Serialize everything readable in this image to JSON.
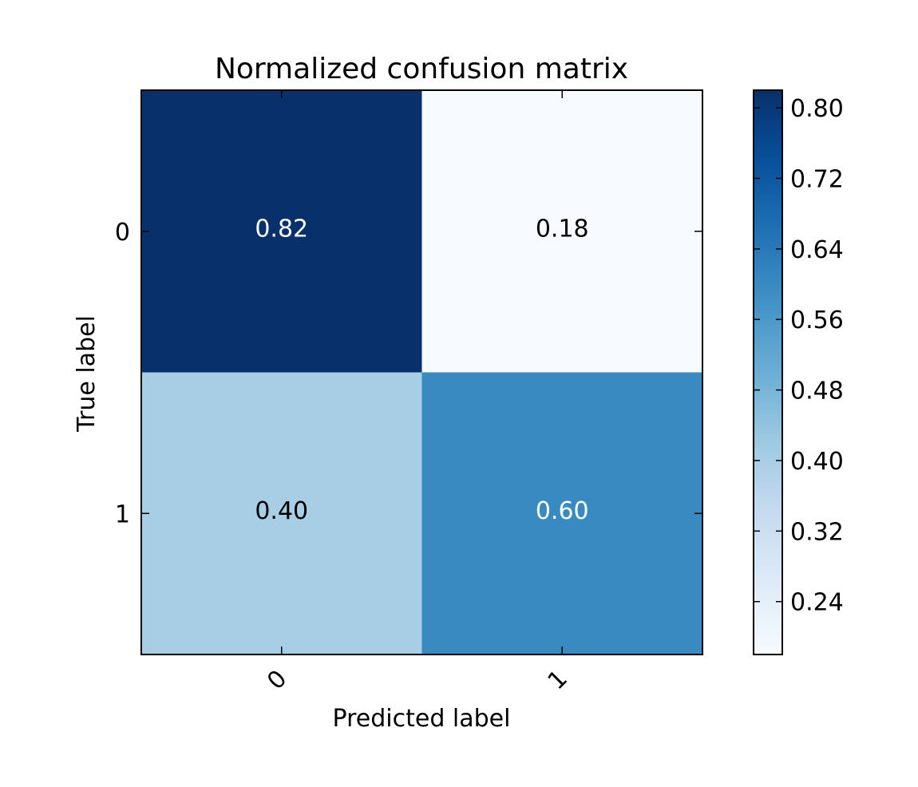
{
  "chart_data": {
    "type": "heatmap",
    "title": "Normalized confusion matrix",
    "xlabel": "Predicted label",
    "ylabel": "True label",
    "x_categories": [
      "0",
      "1"
    ],
    "y_categories": [
      "0",
      "1"
    ],
    "values": [
      [
        0.82,
        0.18
      ],
      [
        0.4,
        0.6
      ]
    ],
    "value_labels": [
      [
        "0.82",
        "0.18"
      ],
      [
        "0.40",
        "0.60"
      ]
    ],
    "colormap": "Blues",
    "color_range": [
      0.18,
      0.82
    ],
    "colorbar_ticks": [
      0.24,
      0.32,
      0.4,
      0.48,
      0.56,
      0.64,
      0.72,
      0.8
    ],
    "colorbar_tick_labels": [
      "0.24",
      "0.32",
      "0.40",
      "0.48",
      "0.56",
      "0.64",
      "0.72",
      "0.80"
    ],
    "colors": {
      "blues_stops": [
        "#f7fbff",
        "#deebf7",
        "#c6dbef",
        "#9ecae1",
        "#6baed6",
        "#4292c6",
        "#2171b5",
        "#08519c",
        "#08306b"
      ],
      "light_text": "#ffffff",
      "dark_text": "#000000"
    }
  }
}
